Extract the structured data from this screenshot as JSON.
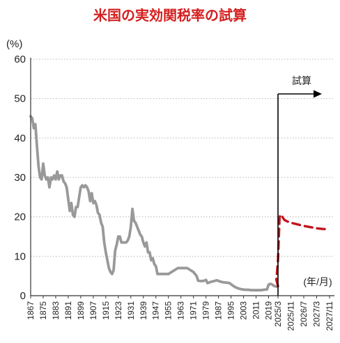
{
  "chart_data": {
    "type": "line",
    "title": "米国の実効関税率の試算",
    "ylabel": "(%)",
    "xunit_label": "(年/月)",
    "ylim": [
      0,
      60
    ],
    "yticks": [
      0,
      10,
      20,
      30,
      40,
      50,
      60
    ],
    "grid": true,
    "xticks_historical": [
      "1867",
      "1875",
      "1883",
      "1891",
      "1899",
      "1907",
      "1915",
      "1923",
      "1931",
      "1939",
      "1947",
      "1955",
      "1963",
      "1971",
      "1979",
      "1987",
      "1995",
      "2003",
      "2011",
      "2019"
    ],
    "xticks_forecast": [
      "2025/3",
      "2025/11",
      "2026/7",
      "2027/3",
      "2027/11"
    ],
    "annotation": "試算",
    "colors": {
      "historical": "#999999",
      "forecast": "#c0141c",
      "title": "#d42020"
    },
    "series": [
      {
        "style": "solid",
        "points": [
          [
            1867,
            45.5
          ],
          [
            1868,
            45.0
          ],
          [
            1869,
            42.5
          ],
          [
            1870,
            43.5
          ],
          [
            1871,
            38.0
          ],
          [
            1872,
            33.0
          ],
          [
            1873,
            30.0
          ],
          [
            1874,
            29.5
          ],
          [
            1875,
            33.5
          ],
          [
            1876,
            30.5
          ],
          [
            1877,
            29.5
          ],
          [
            1878,
            30.0
          ],
          [
            1879,
            27.5
          ],
          [
            1880,
            30.0
          ],
          [
            1881,
            29.5
          ],
          [
            1882,
            30.5
          ],
          [
            1883,
            29.5
          ],
          [
            1884,
            31.5
          ],
          [
            1885,
            29.5
          ],
          [
            1886,
            30.5
          ],
          [
            1887,
            30.5
          ],
          [
            1888,
            29.0
          ],
          [
            1889,
            28.5
          ],
          [
            1890,
            27.5
          ],
          [
            1891,
            24.5
          ],
          [
            1892,
            21.5
          ],
          [
            1893,
            23.5
          ],
          [
            1894,
            20.5
          ],
          [
            1895,
            20.0
          ],
          [
            1896,
            22.5
          ],
          [
            1897,
            22.5
          ],
          [
            1898,
            25.0
          ],
          [
            1899,
            27.5
          ],
          [
            1900,
            28.0
          ],
          [
            1901,
            27.5
          ],
          [
            1902,
            28.0
          ],
          [
            1903,
            27.5
          ],
          [
            1904,
            26.5
          ],
          [
            1905,
            24.0
          ],
          [
            1906,
            26.0
          ],
          [
            1907,
            23.5
          ],
          [
            1908,
            24.0
          ],
          [
            1909,
            23.0
          ],
          [
            1910,
            21.0
          ],
          [
            1911,
            20.5
          ],
          [
            1912,
            18.5
          ],
          [
            1913,
            17.5
          ],
          [
            1914,
            13.5
          ],
          [
            1915,
            11.0
          ],
          [
            1916,
            9.0
          ],
          [
            1917,
            7.0
          ],
          [
            1918,
            6.0
          ],
          [
            1919,
            5.5
          ],
          [
            1920,
            6.5
          ],
          [
            1921,
            11.5
          ],
          [
            1922,
            13.0
          ],
          [
            1923,
            15.0
          ],
          [
            1924,
            15.0
          ],
          [
            1925,
            13.5
          ],
          [
            1926,
            13.5
          ],
          [
            1927,
            13.5
          ],
          [
            1928,
            13.5
          ],
          [
            1929,
            14.0
          ],
          [
            1930,
            15.0
          ],
          [
            1931,
            17.5
          ],
          [
            1932,
            22.0
          ],
          [
            1933,
            19.0
          ],
          [
            1934,
            18.5
          ],
          [
            1935,
            17.5
          ],
          [
            1936,
            16.5
          ],
          [
            1937,
            15.5
          ],
          [
            1938,
            15.0
          ],
          [
            1939,
            13.5
          ],
          [
            1940,
            12.5
          ],
          [
            1941,
            13.5
          ],
          [
            1942,
            11.0
          ],
          [
            1943,
            11.0
          ],
          [
            1944,
            9.0
          ],
          [
            1945,
            9.5
          ],
          [
            1946,
            8.0
          ],
          [
            1947,
            7.5
          ],
          [
            1948,
            5.5
          ],
          [
            1949,
            5.5
          ],
          [
            1950,
            5.5
          ],
          [
            1951,
            5.5
          ],
          [
            1953,
            5.5
          ],
          [
            1955,
            5.5
          ],
          [
            1957,
            6.0
          ],
          [
            1959,
            6.5
          ],
          [
            1961,
            7.0
          ],
          [
            1963,
            7.0
          ],
          [
            1965,
            7.0
          ],
          [
            1967,
            7.0
          ],
          [
            1969,
            6.5
          ],
          [
            1971,
            6.0
          ],
          [
            1973,
            5.0
          ],
          [
            1974,
            3.8
          ],
          [
            1976,
            3.7
          ],
          [
            1978,
            3.8
          ],
          [
            1979,
            4.0
          ],
          [
            1980,
            3.2
          ],
          [
            1982,
            3.5
          ],
          [
            1984,
            3.7
          ],
          [
            1986,
            3.9
          ],
          [
            1988,
            3.6
          ],
          [
            1990,
            3.4
          ],
          [
            1992,
            3.3
          ],
          [
            1994,
            3.2
          ],
          [
            1996,
            2.6
          ],
          [
            1998,
            2.1
          ],
          [
            2000,
            1.8
          ],
          [
            2002,
            1.6
          ],
          [
            2004,
            1.5
          ],
          [
            2006,
            1.5
          ],
          [
            2008,
            1.4
          ],
          [
            2010,
            1.4
          ],
          [
            2012,
            1.4
          ],
          [
            2014,
            1.4
          ],
          [
            2016,
            1.5
          ],
          [
            2018,
            1.6
          ],
          [
            2019,
            2.8
          ],
          [
            2020,
            3.0
          ],
          [
            2021,
            2.9
          ],
          [
            2022,
            2.6
          ],
          [
            2023,
            2.4
          ],
          [
            2024,
            2.3
          ]
        ]
      },
      {
        "style": "dashed",
        "points": [
          [
            "2025/1",
            2.4
          ],
          [
            "2025/2",
            4.0
          ],
          [
            "2025/3",
            9.0
          ],
          [
            "2025/4",
            20.0
          ],
          [
            "2025/5",
            20.6
          ],
          [
            "2025/6",
            19.8
          ],
          [
            "2025/7",
            19.2
          ],
          [
            "2025/9",
            18.8
          ],
          [
            "2025/11",
            18.5
          ],
          [
            "2026/3",
            18.1
          ],
          [
            "2026/7",
            17.7
          ],
          [
            "2026/11",
            17.4
          ],
          [
            "2027/3",
            17.1
          ],
          [
            "2027/7",
            16.9
          ],
          [
            "2027/11",
            16.9
          ]
        ]
      }
    ]
  }
}
